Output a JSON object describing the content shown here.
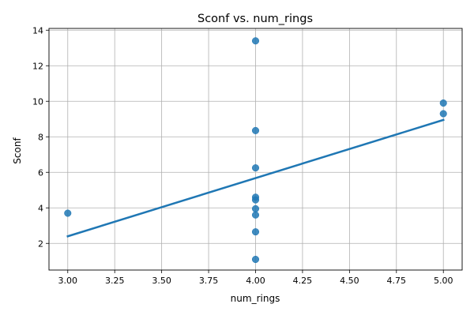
{
  "chart_data": {
    "type": "scatter",
    "title": "Sconf vs. num_rings",
    "xlabel": "num_rings",
    "ylabel": "Sconf",
    "xlim": [
      2.9,
      5.1
    ],
    "ylim": [
      0.5,
      14.1
    ],
    "grid": true,
    "x_ticks": [
      3.0,
      3.25,
      3.5,
      3.75,
      4.0,
      4.25,
      4.5,
      4.75,
      5.0
    ],
    "x_tick_labels": [
      "3.00",
      "3.25",
      "3.50",
      "3.75",
      "4.00",
      "4.25",
      "4.50",
      "4.75",
      "5.00"
    ],
    "y_ticks": [
      2,
      4,
      6,
      8,
      10,
      12,
      14
    ],
    "y_tick_labels": [
      "2",
      "4",
      "6",
      "8",
      "10",
      "12",
      "14"
    ],
    "points": [
      {
        "x": 3.0,
        "y": 3.7
      },
      {
        "x": 4.0,
        "y": 13.4
      },
      {
        "x": 4.0,
        "y": 8.35
      },
      {
        "x": 4.0,
        "y": 6.25
      },
      {
        "x": 4.0,
        "y": 4.6
      },
      {
        "x": 4.0,
        "y": 4.45
      },
      {
        "x": 4.0,
        "y": 3.95
      },
      {
        "x": 4.0,
        "y": 3.6
      },
      {
        "x": 4.0,
        "y": 2.65
      },
      {
        "x": 4.0,
        "y": 1.1
      },
      {
        "x": 5.0,
        "y": 9.9
      },
      {
        "x": 5.0,
        "y": 9.3
      }
    ],
    "trend_line": {
      "x": [
        3.0,
        5.0
      ],
      "y": [
        2.4,
        8.95
      ]
    },
    "colors": {
      "point": "#1f77b4",
      "line": "#1f77b4",
      "grid": "#b0b0b0",
      "axis": "#000000"
    }
  }
}
